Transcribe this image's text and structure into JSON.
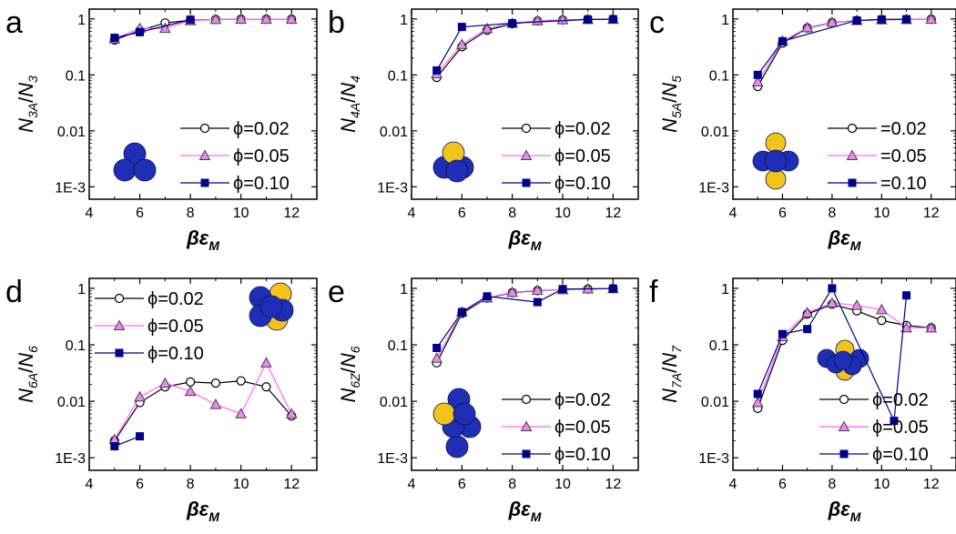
{
  "colors": {
    "series": [
      "#000000",
      "#ff66ff",
      "#00008b"
    ],
    "marker_fill": [
      "#ffffff",
      "#ee88ee",
      "#00008b"
    ],
    "marker_edge": [
      "#000000",
      "#444444",
      "#00008b"
    ],
    "blue_sphere": "#1f2fb5",
    "yellow_sphere": "#f0c419"
  },
  "chart_data": [
    {
      "type": "line",
      "panel_letter": "a",
      "icon": "three-blue-spheres-icon",
      "ylabel_main": "N",
      "ylabel_sub": "3A",
      "ylabel_den": "N",
      "ylabel_den_sub": "3",
      "xlabel_main": "βε",
      "xlabel_sub": "M",
      "xlim": [
        4,
        13
      ],
      "ylim": [
        0.0006,
        1.5
      ],
      "yscale": "log",
      "xticks": [
        "4",
        "6",
        "8",
        "10",
        "12"
      ],
      "yticks": [
        {
          "v": 1,
          "label": "1"
        },
        {
          "v": 0.1,
          "label": "0.1"
        },
        {
          "v": 0.01,
          "label": "0.01"
        },
        {
          "v": 0.001,
          "label": "1E-3"
        }
      ],
      "legend_position": "lower-right",
      "legend_mode": "full",
      "series": [
        {
          "name": "ϕ=0.02",
          "marker": "circle",
          "x": [
            5,
            6,
            7,
            8,
            9,
            10,
            11,
            12
          ],
          "y": [
            0.42,
            0.62,
            0.85,
            0.95,
            0.98,
            0.99,
            0.99,
            0.99
          ]
        },
        {
          "name": "ϕ=0.05",
          "marker": "triangle",
          "x": [
            5,
            6,
            7,
            8,
            9,
            10,
            11,
            12
          ],
          "y": [
            0.44,
            0.68,
            0.68,
            0.93,
            0.98,
            0.99,
            0.99,
            0.99
          ]
        },
        {
          "name": "ϕ=0.10",
          "marker": "square",
          "x": [
            5,
            6,
            8
          ],
          "y": [
            0.46,
            0.58,
            0.97
          ]
        }
      ]
    },
    {
      "type": "line",
      "panel_letter": "b",
      "icon": "four-sphere-one-yellow-icon",
      "ylabel_main": "N",
      "ylabel_sub": "4A",
      "ylabel_den": "N",
      "ylabel_den_sub": "4",
      "xlabel_main": "βε",
      "xlabel_sub": "M",
      "xlim": [
        4,
        13
      ],
      "ylim": [
        0.0006,
        1.5
      ],
      "yscale": "log",
      "xticks": [
        "4",
        "6",
        "8",
        "10",
        "12"
      ],
      "yticks": [
        {
          "v": 1,
          "label": "1"
        },
        {
          "v": 0.1,
          "label": "0.1"
        },
        {
          "v": 0.01,
          "label": "0.01"
        },
        {
          "v": 0.001,
          "label": "1E-3"
        }
      ],
      "legend_position": "lower-right",
      "legend_mode": "full",
      "series": [
        {
          "name": "ϕ=0.02",
          "marker": "circle",
          "x": [
            5,
            6,
            7,
            8,
            9,
            10,
            11,
            12
          ],
          "y": [
            0.09,
            0.32,
            0.63,
            0.82,
            0.92,
            0.96,
            0.98,
            0.99
          ]
        },
        {
          "name": "ϕ=0.05",
          "marker": "triangle",
          "x": [
            5,
            6,
            7,
            8,
            9,
            10,
            11,
            12
          ],
          "y": [
            0.105,
            0.35,
            0.67,
            0.84,
            0.93,
            0.97,
            0.98,
            0.99
          ]
        },
        {
          "name": "ϕ=0.10",
          "marker": "square",
          "x": [
            5,
            6,
            8,
            11,
            12
          ],
          "y": [
            0.12,
            0.72,
            0.84,
            0.98,
            0.99
          ]
        }
      ]
    },
    {
      "type": "line",
      "panel_letter": "c",
      "icon": "five-sphere-two-yellow-icon",
      "ylabel_main": "N",
      "ylabel_sub": "5A",
      "ylabel_den": "N",
      "ylabel_den_sub": "5",
      "xlabel_main": "βε",
      "xlabel_sub": "M",
      "xlim": [
        4,
        13
      ],
      "ylim": [
        0.0006,
        1.5
      ],
      "yscale": "log",
      "xticks": [
        "4",
        "6",
        "8",
        "10",
        "12"
      ],
      "yticks": [
        {
          "v": 1,
          "label": "1"
        },
        {
          "v": 0.1,
          "label": "0.1"
        },
        {
          "v": 0.01,
          "label": "0.01"
        },
        {
          "v": 0.001,
          "label": "1E-3"
        }
      ],
      "legend_position": "lower-right",
      "legend_mode": "cut",
      "series": [
        {
          "name": "=0.02",
          "marker": "circle",
          "x": [
            5,
            6,
            7,
            8,
            9,
            10,
            11,
            12
          ],
          "y": [
            0.062,
            0.37,
            0.69,
            0.86,
            0.94,
            0.97,
            0.98,
            0.99
          ]
        },
        {
          "name": "=0.05",
          "marker": "triangle",
          "x": [
            5,
            6,
            7,
            8,
            9,
            10,
            11,
            12
          ],
          "y": [
            0.075,
            0.4,
            0.7,
            0.87,
            0.94,
            0.97,
            0.98,
            0.99
          ]
        },
        {
          "name": "=0.10",
          "marker": "square",
          "x": [
            5,
            6,
            9,
            10,
            11
          ],
          "y": [
            0.1,
            0.4,
            0.94,
            0.98,
            0.99
          ]
        }
      ]
    },
    {
      "type": "line",
      "panel_letter": "d",
      "icon": "six-sphere-octahedron-icon",
      "ylabel_main": "N",
      "ylabel_sub": "6A",
      "ylabel_den": "N",
      "ylabel_den_sub": "6",
      "xlabel_main": "βε",
      "xlabel_sub": "M",
      "xlim": [
        4,
        13
      ],
      "ylim": [
        0.0006,
        1.5
      ],
      "yscale": "log",
      "xticks": [
        "4",
        "6",
        "8",
        "10",
        "12"
      ],
      "yticks": [
        {
          "v": 1,
          "label": "1"
        },
        {
          "v": 0.1,
          "label": "0.1"
        },
        {
          "v": 0.01,
          "label": "0.01"
        },
        {
          "v": 0.001,
          "label": "1E-3"
        }
      ],
      "legend_position": "top-left",
      "legend_mode": "full",
      "series": [
        {
          "name": "ϕ=0.02",
          "marker": "circle",
          "x": [
            5,
            6,
            7,
            8,
            9,
            10,
            11,
            12
          ],
          "y": [
            0.002,
            0.0095,
            0.018,
            0.022,
            0.021,
            0.023,
            0.018,
            0.0055
          ]
        },
        {
          "name": "ϕ=0.05",
          "marker": "triangle",
          "x": [
            5,
            6,
            7,
            8,
            9,
            10,
            11,
            12
          ],
          "y": [
            0.0021,
            0.012,
            0.021,
            0.015,
            0.0088,
            0.006,
            0.048,
            0.006
          ]
        },
        {
          "name": "ϕ=0.10",
          "marker": "square",
          "x": [
            5,
            6
          ],
          "y": [
            0.0016,
            0.0024
          ]
        }
      ]
    },
    {
      "type": "line",
      "panel_letter": "e",
      "icon": "six-sphere-one-yellow-icon",
      "ylabel_main": "N",
      "ylabel_sub": "6Z",
      "ylabel_den": "N",
      "ylabel_den_sub": "6",
      "xlabel_main": "βε",
      "xlabel_sub": "M",
      "xlim": [
        4,
        13
      ],
      "ylim": [
        0.0006,
        1.5
      ],
      "yscale": "log",
      "xticks": [
        "4",
        "6",
        "8",
        "10",
        "12"
      ],
      "yticks": [
        {
          "v": 1,
          "label": "1"
        },
        {
          "v": 0.1,
          "label": "0.1"
        },
        {
          "v": 0.01,
          "label": "0.01"
        },
        {
          "v": 0.001,
          "label": "1E-3"
        }
      ],
      "legend_position": "lower-right",
      "legend_mode": "full",
      "series": [
        {
          "name": "ϕ=0.02",
          "marker": "circle",
          "x": [
            5,
            6,
            7,
            8,
            9,
            10,
            11,
            12
          ],
          "y": [
            0.048,
            0.36,
            0.67,
            0.84,
            0.91,
            0.95,
            0.97,
            0.99
          ]
        },
        {
          "name": "ϕ=0.05",
          "marker": "triangle",
          "x": [
            5,
            6,
            7,
            8,
            9,
            10,
            11,
            12
          ],
          "y": [
            0.058,
            0.38,
            0.68,
            0.85,
            0.92,
            0.95,
            0.98,
            0.99
          ]
        },
        {
          "name": "ϕ=0.10",
          "marker": "square",
          "x": [
            5,
            6,
            7,
            9,
            10,
            12
          ],
          "y": [
            0.088,
            0.38,
            0.72,
            0.57,
            0.97,
            0.99
          ]
        }
      ]
    },
    {
      "type": "line",
      "panel_letter": "f",
      "icon": "seven-sphere-two-yellow-icon",
      "ylabel_main": "N",
      "ylabel_sub": "7A",
      "ylabel_den": "N",
      "ylabel_den_sub": "7",
      "xlabel_main": "βε",
      "xlabel_sub": "M",
      "xlim": [
        4,
        13
      ],
      "ylim": [
        0.0006,
        1.5
      ],
      "yscale": "log",
      "xticks": [
        "4",
        "6",
        "8",
        "10",
        "12"
      ],
      "yticks": [
        {
          "v": 1,
          "label": "1"
        },
        {
          "v": 0.1,
          "label": "0.1"
        },
        {
          "v": 0.01,
          "label": "0.01"
        },
        {
          "v": 0.001,
          "label": "1E-3"
        }
      ],
      "legend_position": "lower-right",
      "legend_mode": "full",
      "series": [
        {
          "name": "ϕ=0.02",
          "marker": "circle",
          "x": [
            5,
            6,
            7,
            8,
            9,
            10,
            11,
            12
          ],
          "y": [
            0.0075,
            0.12,
            0.35,
            0.52,
            0.4,
            0.27,
            0.22,
            0.2
          ]
        },
        {
          "name": "ϕ=0.05",
          "marker": "triangle",
          "x": [
            5,
            6,
            7,
            8,
            9,
            10,
            11,
            12
          ],
          "y": [
            0.0095,
            0.14,
            0.37,
            0.55,
            0.5,
            0.42,
            0.2,
            0.2
          ]
        },
        {
          "name": "ϕ=0.10",
          "marker": "square",
          "x": [
            5,
            6,
            7,
            8,
            10.5,
            11
          ],
          "y": [
            0.0135,
            0.155,
            0.19,
            1.0,
            0.0045,
            0.75
          ]
        }
      ]
    }
  ]
}
